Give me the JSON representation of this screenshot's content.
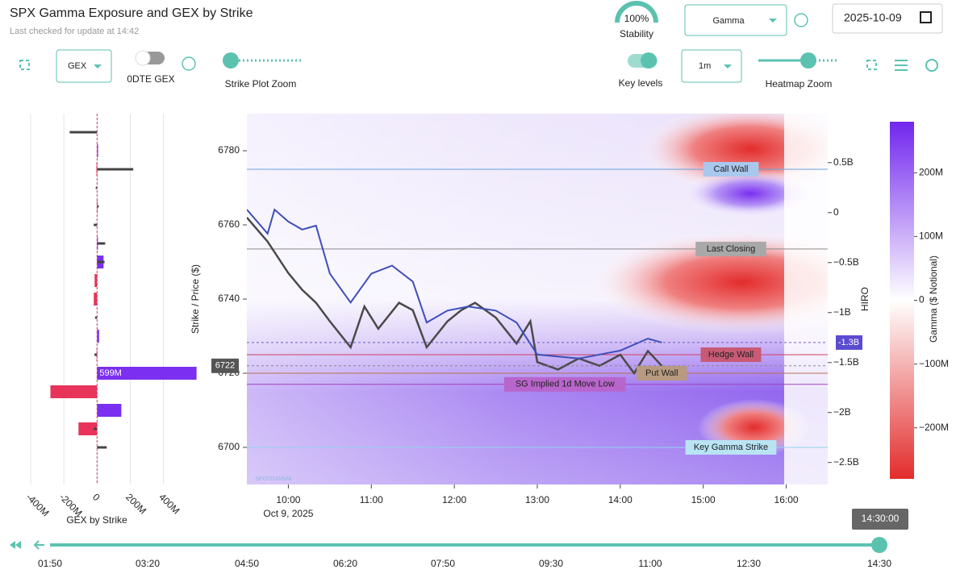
{
  "header": {
    "title": "SPX Gamma Exposure and GEX by Strike",
    "subtitle": "Last checked for update at 14:42",
    "stability_value": "100%",
    "stability_label": "Stability",
    "mode_select": "Gamma",
    "date": "2025-10-09"
  },
  "controls": {
    "gex_select": "GEX",
    "odte_label": "0DTE GEX",
    "strike_zoom_label": "Strike Plot Zoom",
    "key_levels_label": "Key levels",
    "interval_select": "1m",
    "heatmap_zoom_label": "Heatmap Zoom"
  },
  "chart_data": [
    {
      "type": "bar",
      "orientation": "horizontal",
      "xlabel": "GEX by Strike",
      "strikes": [
        6785,
        6780,
        6775,
        6770,
        6765,
        6760,
        6755,
        6750,
        6745,
        6740,
        6735,
        6730,
        6725,
        6720,
        6715,
        6710,
        6705,
        6700
      ],
      "series": [
        {
          "color": "#7b2ff0",
          "negative_color": "#e8345a",
          "values": [
            0,
            6000000,
            -4000000,
            0,
            3000000,
            0,
            5000000,
            39000000,
            -15000000,
            -20000000,
            0,
            12000000,
            -3000000,
            599000000,
            -281000000,
            146000000,
            -112000000,
            0
          ],
          "value_labels": [
            null,
            null,
            null,
            null,
            null,
            null,
            null,
            null,
            null,
            null,
            null,
            null,
            null,
            "599M",
            null,
            null,
            null,
            null
          ]
        },
        {
          "color": "#444444",
          "values": [
            -165000000,
            0,
            218000000,
            -8000000,
            10000000,
            -20000000,
            49000000,
            45000000,
            0,
            0,
            -12000000,
            0,
            -16000000,
            0,
            0,
            0,
            -20000000,
            58000000
          ]
        }
      ],
      "xlim": [
        -400000000,
        800000000
      ],
      "ylim": [
        6690,
        6790
      ],
      "xticks": [
        {
          "value": -400000000,
          "label": "-400M"
        },
        {
          "value": -200000000,
          "label": "-200M"
        },
        0,
        {
          "value": 200000000,
          "label": "200M"
        },
        {
          "value": 400000000,
          "label": "400M"
        }
      ]
    },
    {
      "type": "line",
      "ylabel": "Strike / Price ($)",
      "y2label": "HIRO",
      "xlabel": "Oct 9, 2025",
      "xlim": [
        "09:30",
        "16:30"
      ],
      "xticks": [
        "10:00",
        "11:00",
        "12:00",
        "13:00",
        "14:00",
        "15:00",
        "16:00"
      ],
      "ylim": [
        6690,
        6790
      ],
      "yticks": [
        6700,
        6720,
        6740,
        6760,
        6780
      ],
      "y2lim": [
        -2.72,
        0.99
      ],
      "y2ticks": [
        {
          "value": 0.5,
          "label": "0.5B"
        },
        0,
        {
          "value": -0.5,
          "label": "−0.5B"
        },
        {
          "value": -1,
          "label": "−1B"
        },
        {
          "value": -1.5,
          "label": "−1.5B"
        },
        {
          "value": -2,
          "label": "−2B"
        },
        {
          "value": -2.5,
          "label": "−2.5B"
        }
      ],
      "series": [
        {
          "color": "#4a4a4a",
          "x": [
            "09:30",
            "09:45",
            "10:00",
            "10:10",
            "10:20",
            "10:30",
            "10:45",
            "10:55",
            "11:05",
            "11:20",
            "11:30",
            "11:40",
            "11:55",
            "12:05",
            "12:15",
            "12:30",
            "12:45",
            "12:55",
            "13:00",
            "13:15",
            "13:30",
            "13:45",
            "14:00",
            "14:10",
            "14:20",
            "14:30"
          ],
          "values": [
            6762,
            6755.5,
            6747,
            6742.5,
            6739,
            6734,
            6727,
            6738,
            6732,
            6739,
            6737,
            6727,
            6734,
            6737,
            6739,
            6735,
            6728,
            6734,
            6723,
            6721,
            6724,
            6722,
            6725,
            6720,
            6726,
            6722
          ]
        },
        {
          "color": "#3d4fb8",
          "axis": "y2",
          "x": [
            "09:30",
            "09:45",
            "09:50",
            "10:00",
            "10:10",
            "10:20",
            "10:30",
            "10:45",
            "11:00",
            "11:15",
            "11:30",
            "11:40",
            "11:55",
            "12:10",
            "12:30",
            "12:45",
            "13:00",
            "13:30",
            "14:00",
            "14:20",
            "14:30"
          ],
          "values": [
            0.03,
            -0.21,
            0.03,
            -0.09,
            -0.17,
            -0.13,
            -0.61,
            -0.9,
            -0.61,
            -0.53,
            -0.69,
            -1.1,
            -0.98,
            -0.94,
            -0.98,
            -1.1,
            -1.42,
            -1.46,
            -1.38,
            -1.26,
            -1.3
          ]
        }
      ],
      "last_price": 6722,
      "hiro_current": {
        "value": -1.3,
        "label": "-1.3B"
      },
      "key_levels": [
        {
          "label": "Call Wall",
          "value": 6775,
          "color": "#6a9fd8",
          "box": "#a9c8ee",
          "at": "15:20"
        },
        {
          "label": "Last Closing",
          "value": 6753.5,
          "color": "#8a8a8a",
          "box": "#a8a8a8",
          "at": "15:20"
        },
        {
          "label": "Hedge Wall",
          "value": 6725,
          "color": "#d04060",
          "box": "#c85a75",
          "at": "15:20"
        },
        {
          "label": "Put Wall",
          "value": 6720,
          "color": "#b87050",
          "box": "#b89a80",
          "at": "14:30"
        },
        {
          "label": "SG Implied 1d Move Low",
          "value": 6717,
          "color": "#a040c0",
          "box": "#b865cc",
          "at": "13:20"
        },
        {
          "label": "Key Gamma Strike",
          "value": 6700,
          "color": "#8fd3ef",
          "box": "#b8e4f4",
          "at": "15:20"
        }
      ],
      "colorbar": {
        "label": "Gamma ($ Notional)",
        "lim": [
          -280000000,
          280000000
        ],
        "ticks": [
          {
            "value": 200000000,
            "label": "200M"
          },
          {
            "value": 100000000,
            "label": "100M"
          },
          0,
          {
            "value": -100000000,
            "label": "−100M"
          },
          {
            "value": -200000000,
            "label": "−200M"
          }
        ]
      }
    }
  ],
  "timeline": {
    "labels": [
      "01:50",
      "03:20",
      "04:50",
      "06:20",
      "07:50",
      "09:30",
      "11:00",
      "12:30",
      "14:30"
    ],
    "current": "14:30:00"
  }
}
